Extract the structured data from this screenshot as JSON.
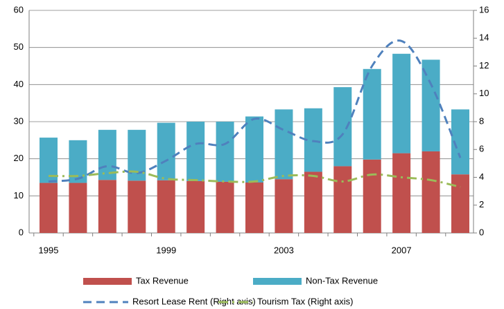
{
  "chart_data": {
    "type": "bar",
    "categories": [
      "1995",
      null,
      null,
      null,
      "1999",
      null,
      null,
      null,
      "2003",
      null,
      null,
      null,
      "2007",
      null,
      null
    ],
    "stacked": true,
    "series": [
      {
        "name": "Tax Revenue",
        "type": "bar",
        "color": "#c0504d",
        "values": [
          13.5,
          13.5,
          14.3,
          14.1,
          14.2,
          14,
          13.8,
          13.6,
          14.5,
          16.5,
          18,
          19.8,
          21.5,
          22,
          15.8
        ]
      },
      {
        "name": "Non-Tax Revenue",
        "type": "bar",
        "color": "#4bacc6",
        "values": [
          12.2,
          11.5,
          13.5,
          13.7,
          15.5,
          16,
          16.2,
          17.8,
          18.8,
          17.1,
          21.3,
          24.4,
          26.8,
          24.7,
          17.5
        ]
      },
      {
        "name": "Resort Lease Rent (Right axis)",
        "type": "line",
        "axis": "y2",
        "color": "#4f81bd",
        "dash": "dashed",
        "values": [
          3.7,
          3.9,
          4.8,
          4.3,
          5.2,
          6.4,
          6.4,
          8.2,
          7.4,
          6.6,
          7.1,
          12.0,
          13.8,
          10.7,
          5.4
        ]
      },
      {
        "name": "Tourism Tax (Right axis)",
        "type": "line",
        "axis": "y2",
        "color": "#9bbb59",
        "dash": "dash-dot",
        "values": [
          4.1,
          4.1,
          4.3,
          4.4,
          3.9,
          3.8,
          3.7,
          3.7,
          4.1,
          4.1,
          3.7,
          4.2,
          4.0,
          3.8,
          3.3
        ]
      }
    ],
    "ylim": [
      0,
      60
    ],
    "yticks": [
      0,
      10,
      20,
      30,
      40,
      50,
      60
    ],
    "y2lim": [
      0,
      16
    ],
    "y2ticks": [
      0,
      2,
      4,
      6,
      8,
      10,
      12,
      14,
      16
    ],
    "grid": true,
    "legend": "bottom"
  }
}
